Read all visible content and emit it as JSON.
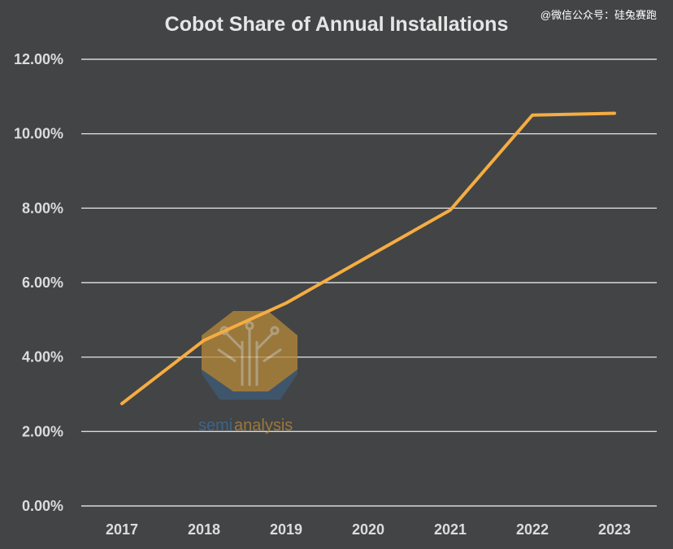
{
  "watermark": "@微信公众号：硅兔赛跑",
  "logo": {
    "text_part1": "semi",
    "text_part2": "analysis"
  },
  "colors": {
    "background": "#434445",
    "line": "#f5ad42",
    "grid": "#d9d9d9",
    "text": "#dcdcdc"
  },
  "chart_data": {
    "type": "line",
    "title": "Cobot Share of Annual Installations",
    "xlabel": "",
    "ylabel": "",
    "categories": [
      "2017",
      "2018",
      "2019",
      "2020",
      "2021",
      "2022",
      "2023"
    ],
    "series": [
      {
        "values": [
          2.75,
          4.45,
          5.45,
          6.7,
          7.95,
          10.5,
          10.55
        ]
      }
    ],
    "ylim": [
      0,
      12
    ],
    "y_ticks": [
      0,
      2,
      4,
      6,
      8,
      10,
      12
    ],
    "y_tick_labels": [
      "0.00%",
      "2.00%",
      "4.00%",
      "6.00%",
      "8.00%",
      "10.00%",
      "12.00%"
    ],
    "grid": true,
    "legend": "none"
  }
}
